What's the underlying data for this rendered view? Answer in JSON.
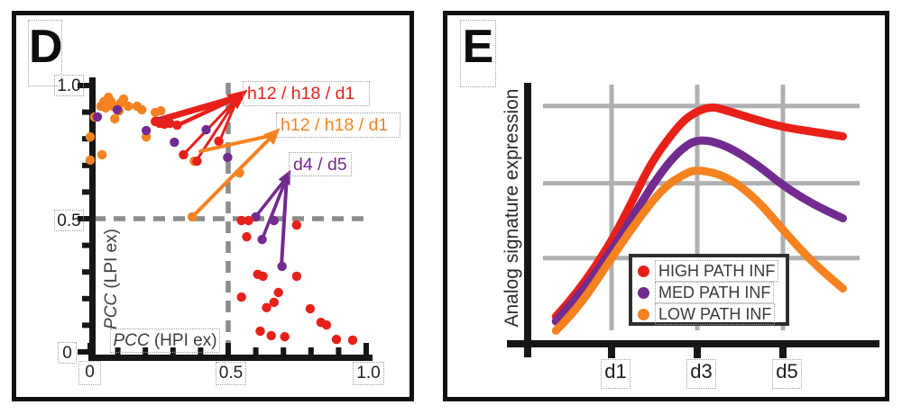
{
  "colors": {
    "red": "#e8201a",
    "orange": "#f58220",
    "purple": "#722b8e",
    "gray_dash": "#8c8c8c",
    "grid_gray": "#b0b0b0",
    "axis": "#161616"
  },
  "panel_d": {
    "label": "D",
    "x_axis": {
      "label_italic": "PCC",
      "label_rest": " (HPI ex)",
      "ticks": [
        "0",
        "0.5",
        "1.0"
      ]
    },
    "y_axis": {
      "label_italic": "PCC",
      "label_rest": " (LPI ex)",
      "ticks": [
        "1.0",
        "0.5",
        "0"
      ]
    },
    "annotations": [
      {
        "id": "red",
        "text": "h12 / h18 / d1"
      },
      {
        "id": "orange",
        "text": "h12 / h18 / d1"
      },
      {
        "id": "purple",
        "text": "d4 / d5"
      }
    ],
    "chart_data": {
      "type": "scatter",
      "xlabel": "PCC (HPI ex)",
      "ylabel": "PCC (LPI ex)",
      "xlim": [
        0,
        1
      ],
      "ylim": [
        0,
        1
      ],
      "grid": false,
      "reference_lines": {
        "x": 0.5,
        "y": 0.5,
        "style": "gray dashed"
      },
      "series": [
        {
          "name": "orange",
          "color_key": "orange",
          "points": [
            [
              0.05,
              0.94
            ],
            [
              0.066,
              0.956
            ],
            [
              0.075,
              0.94
            ],
            [
              0.039,
              0.922
            ],
            [
              0.056,
              0.916
            ],
            [
              0.082,
              0.922
            ],
            [
              0.108,
              0.932
            ],
            [
              0.121,
              0.949
            ],
            [
              0.138,
              0.922
            ],
            [
              0.105,
              0.905
            ],
            [
              0.016,
              0.882
            ],
            [
              0.089,
              0.875
            ],
            [
              0.17,
              0.922
            ],
            [
              0.187,
              0.909
            ],
            [
              0.236,
              0.899
            ],
            [
              0.256,
              0.905
            ],
            [
              0.0,
              0.807
            ],
            [
              0.043,
              0.74
            ],
            [
              0.0,
              0.72
            ],
            [
              0.203,
              0.807
            ],
            [
              0.377,
              0.716
            ],
            [
              0.37,
              0.507
            ],
            [
              0.541,
              0.672
            ]
          ]
        },
        {
          "name": "purple",
          "color_key": "purple",
          "points": [
            [
              0.026,
              0.882
            ],
            [
              0.098,
              0.909
            ],
            [
              0.203,
              0.831
            ],
            [
              0.246,
              0.865
            ],
            [
              0.305,
              0.787
            ],
            [
              0.42,
              0.834
            ],
            [
              0.498,
              0.73
            ],
            [
              0.6,
              0.507
            ],
            [
              0.666,
              0.493
            ],
            [
              0.623,
              0.422
            ],
            [
              0.695,
              0.321
            ]
          ]
        },
        {
          "name": "red",
          "color_key": "red",
          "points": [
            [
              0.236,
              0.865
            ],
            [
              0.252,
              0.858
            ],
            [
              0.269,
              0.855
            ],
            [
              0.289,
              0.858
            ],
            [
              0.315,
              0.851
            ],
            [
              0.466,
              0.791
            ],
            [
              0.338,
              0.74
            ],
            [
              0.387,
              0.716
            ],
            [
              0.548,
              0.493
            ],
            [
              0.574,
              0.493
            ],
            [
              0.748,
              0.476
            ],
            [
              0.567,
              0.432
            ],
            [
              0.607,
              0.291
            ],
            [
              0.626,
              0.284
            ],
            [
              0.748,
              0.284
            ],
            [
              0.682,
              0.223
            ],
            [
              0.548,
              0.206
            ],
            [
              0.666,
              0.186
            ],
            [
              0.639,
              0.166
            ],
            [
              0.797,
              0.162
            ],
            [
              0.836,
              0.111
            ],
            [
              0.856,
              0.101
            ],
            [
              0.616,
              0.078
            ],
            [
              0.656,
              0.061
            ],
            [
              0.705,
              0.057
            ],
            [
              0.892,
              0.047
            ],
            [
              0.951,
              0.044
            ]
          ]
        }
      ],
      "arrows": [
        {
          "color_key": "red",
          "label": "h12 / h18 / d1",
          "apex": [
            0.536,
            0.956
          ],
          "head_angle": 38,
          "head_size": 22,
          "targets": [
            {
              "p": [
                0.242,
                0.868
              ],
              "w": 7
            },
            {
              "p": [
                0.317,
                0.851
              ],
              "w": 4.5
            },
            {
              "p": [
                0.34,
                0.743
              ],
              "w": 3
            },
            {
              "p": [
                0.386,
                0.72
              ],
              "w": 3
            },
            {
              "p": [
                0.467,
                0.787
              ],
              "w": 3
            }
          ]
        },
        {
          "color_key": "orange",
          "label": "h12 / h18 / d1",
          "apex": [
            0.663,
            0.814
          ],
          "head_angle": 45,
          "head_size": 18,
          "targets": [
            {
              "p": [
                0.373,
                0.51
              ],
              "w": 4
            },
            {
              "p": [
                0.399,
                0.753
              ],
              "w": 4
            }
          ]
        },
        {
          "color_key": "purple",
          "label": "d4 / d5",
          "apex": [
            0.712,
            0.655
          ],
          "head_angle": 63,
          "head_size": 16,
          "targets": [
            {
              "p": [
                0.601,
                0.51
              ],
              "w": 3.5
            },
            {
              "p": [
                0.65,
                0.49
              ],
              "w": 3.5
            },
            {
              "p": [
                0.624,
                0.426
              ],
              "w": 3.5
            },
            {
              "p": [
                0.693,
                0.324
              ],
              "w": 4
            }
          ]
        }
      ]
    }
  },
  "panel_e": {
    "label": "E",
    "y_axis_label": "Analog signature expression",
    "x_ticks": [
      "d1",
      "d3",
      "d5"
    ],
    "legend": [
      {
        "label": "HIGH PATH INF",
        "color_key": "red"
      },
      {
        "label": "MED PATH INF",
        "color_key": "purple"
      },
      {
        "label": "LOW PATH INF",
        "color_key": "orange"
      }
    ],
    "chart_data": {
      "type": "line",
      "ylabel": "Analog signature expression",
      "x_unit": "days",
      "x_tick_days": [
        1,
        3,
        5
      ],
      "grid": {
        "vertical_days": [
          1,
          3,
          5
        ],
        "horizontal_values": [
          97,
          64,
          32
        ]
      },
      "legend_position": "inside bottom-center",
      "series": [
        {
          "name": "HIGH PATH INF",
          "color_key": "red",
          "x": [
            -0.3,
            0.2,
            1,
            1.5,
            1.9,
            2.4,
            2.8,
            3.3,
            3.7,
            4.4,
            5,
            5.7,
            6.4
          ],
          "y": [
            7,
            17,
            39,
            57,
            72,
            85,
            93,
            97,
            95,
            91,
            88,
            86,
            84
          ]
        },
        {
          "name": "MED PATH INF",
          "color_key": "purple",
          "x": [
            -0.3,
            0.2,
            1,
            1.6,
            2.2,
            2.7,
            3.1,
            3.7,
            4.4,
            5,
            5.7,
            6.4
          ],
          "y": [
            5,
            15,
            35,
            53,
            70,
            80,
            83,
            80,
            72,
            63,
            55,
            49
          ]
        },
        {
          "name": "LOW PATH INF",
          "color_key": "orange",
          "x": [
            -0.3,
            0.2,
            1,
            1.6,
            2.2,
            2.7,
            3,
            3.7,
            4.4,
            5,
            5.7,
            6.4
          ],
          "y": [
            1,
            10,
            32,
            48,
            62,
            68,
            70,
            67,
            57,
            44,
            30,
            19
          ]
        }
      ]
    }
  }
}
